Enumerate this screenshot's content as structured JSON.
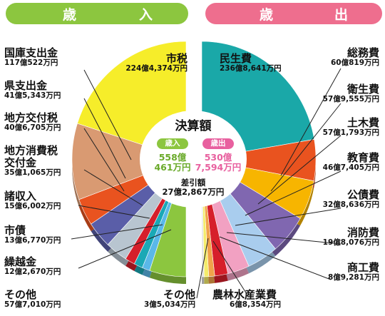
{
  "headers": {
    "revenue": [
      "歳",
      "入"
    ],
    "expenditure": [
      "歳",
      "出"
    ]
  },
  "center": {
    "title": "決算額",
    "revenue_pill": "歳入",
    "expenditure_pill": "歳出",
    "revenue_amount": [
      "558億",
      "461万円"
    ],
    "expenditure_amount": [
      "530億",
      "7,594万円"
    ],
    "diff_label": "差引額",
    "diff_amount": "27億2,867万円"
  },
  "chart_data": [
    {
      "type": "pie",
      "title": "歳入",
      "unit": "億円",
      "slices": [
        {
          "name": "市税",
          "label": "224億4,374万円",
          "value": 224.4374,
          "color": "#f6ed2a"
        },
        {
          "name": "国庫支出金",
          "label": "117億522万円",
          "value": 117.0522,
          "color": "#d99a72"
        },
        {
          "name": "県支出金",
          "label": "41億5,343万円",
          "value": 41.5343,
          "color": "#e9531f"
        },
        {
          "name": "地方交付税",
          "label": "40億6,705万円",
          "value": 40.6705,
          "color": "#5a5ea8"
        },
        {
          "name": "地方消費税交付金",
          "label": "35億1,065万円",
          "value": 35.1065,
          "color": "#b8c5d0"
        },
        {
          "name": "諸収入",
          "label": "15億6,002万円",
          "value": 15.6002,
          "color": "#d61f2b"
        },
        {
          "name": "市債",
          "label": "13億6,770万円",
          "value": 13.677,
          "color": "#1aa8b5"
        },
        {
          "name": "繰越金",
          "label": "12億2,670万円",
          "value": 12.267,
          "color": "#5ab8e8"
        },
        {
          "name": "その他",
          "label": "57億7,010万円",
          "value": 57.701,
          "color": "#8cc63f"
        }
      ]
    },
    {
      "type": "pie",
      "title": "歳出",
      "unit": "億円",
      "slices": [
        {
          "name": "民生費",
          "label": "236億8,641万円",
          "value": 236.8641,
          "color": "#1aa8a8"
        },
        {
          "name": "総務費",
          "label": "60億819万円",
          "value": 60.0819,
          "color": "#e9531f"
        },
        {
          "name": "衛生費",
          "label": "57億9,555万円",
          "value": 57.9555,
          "color": "#f7b500"
        },
        {
          "name": "土木費",
          "label": "57億1,793万円",
          "value": 57.1793,
          "color": "#8067b0"
        },
        {
          "name": "教育費",
          "label": "46億7,405万円",
          "value": 46.7405,
          "color": "#a9cdee"
        },
        {
          "name": "公債費",
          "label": "32億8,636万円",
          "value": 32.8636,
          "color": "#f2a1c2"
        },
        {
          "name": "消防費",
          "label": "19億8,076万円",
          "value": 19.8076,
          "color": "#d61f2b"
        },
        {
          "name": "商工費",
          "label": "8億9,281万円",
          "value": 8.9281,
          "color": "#f0a24a"
        },
        {
          "name": "農林水産業費",
          "label": "6億8,354万円",
          "value": 6.8354,
          "color": "#f4ec6a"
        },
        {
          "name": "その他",
          "label": "3億5,034万円",
          "value": 3.5034,
          "color": "#e0e0e0"
        }
      ]
    }
  ]
}
